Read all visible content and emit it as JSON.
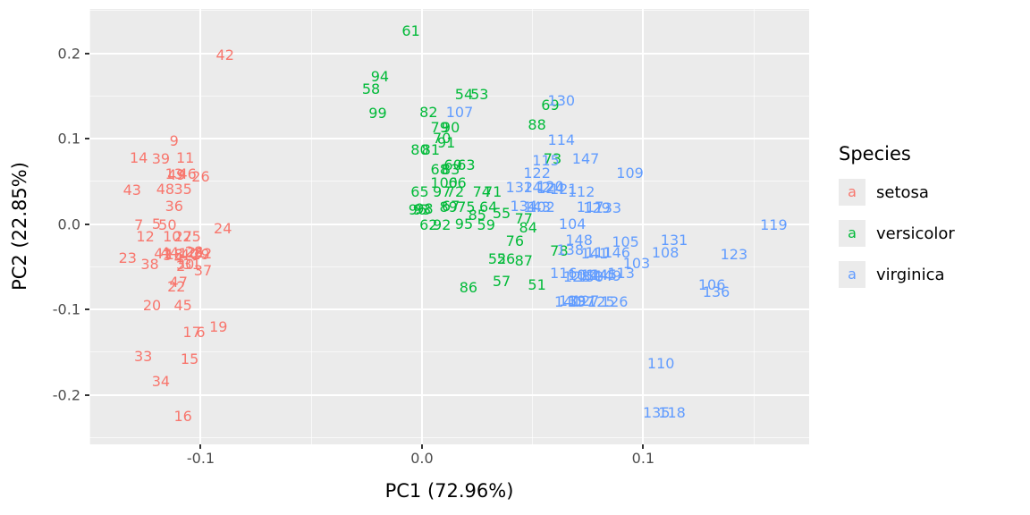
{
  "figure": {
    "xlabel": "PC1 (72.96%)",
    "ylabel": "PC2 (22.85%)"
  },
  "legend": {
    "title": "Species",
    "glyph": "a",
    "items": [
      {
        "label": "setosa",
        "color": "#F8766D"
      },
      {
        "label": "versicolor",
        "color": "#00BA38"
      },
      {
        "label": "virginica",
        "color": "#619CFF"
      }
    ]
  },
  "chart_data": {
    "type": "scatter",
    "mode": "text-labels",
    "title": "",
    "xlabel": "PC1 (72.96%)",
    "ylabel": "PC2 (22.85%)",
    "xlim": [
      -0.1503,
      0.175
    ],
    "ylim": [
      -0.258,
      0.252
    ],
    "x_ticks": [
      -0.1,
      0.0,
      0.1
    ],
    "x_tick_labels": [
      "-0.1",
      "0.0",
      "0.1"
    ],
    "y_ticks": [
      -0.2,
      -0.1,
      0.0,
      0.1,
      0.2
    ],
    "y_tick_labels": [
      "-0.2",
      "-0.1",
      "0.0",
      "0.1",
      "0.2"
    ],
    "x_minor": [
      -0.15,
      -0.05,
      0.05,
      0.15
    ],
    "y_minor": [
      -0.25,
      -0.15,
      -0.05,
      0.05,
      0.15,
      0.25
    ],
    "grid": true,
    "legend_position": "right",
    "panel_background": "#EBEBEB",
    "grid_color": "#FFFFFF",
    "series_colors": {
      "setosa": "#F8766D",
      "versicolor": "#00BA38",
      "virginica": "#619CFF"
    },
    "point_format": [
      "label",
      "species",
      "x",
      "y"
    ],
    "points": [
      [
        "1",
        "setosa",
        -0.108,
        -0.035
      ],
      [
        "2",
        "setosa",
        -0.109,
        -0.05
      ],
      [
        "3",
        "setosa",
        -0.115,
        -0.037
      ],
      [
        "4",
        "setosa",
        -0.11,
        -0.04
      ],
      [
        "5",
        "setosa",
        -0.12,
        0.0
      ],
      [
        "6",
        "setosa",
        -0.1,
        -0.127
      ],
      [
        "7",
        "setosa",
        -0.128,
        -0.001
      ],
      [
        "8",
        "setosa",
        -0.11,
        -0.036
      ],
      [
        "9",
        "setosa",
        -0.112,
        0.097
      ],
      [
        "10",
        "setosa",
        -0.113,
        -0.015
      ],
      [
        "11",
        "setosa",
        -0.107,
        0.077
      ],
      [
        "12",
        "setosa",
        -0.125,
        -0.015
      ],
      [
        "13",
        "setosa",
        -0.112,
        0.058
      ],
      [
        "14",
        "setosa",
        -0.128,
        0.077
      ],
      [
        "15",
        "setosa",
        -0.105,
        -0.158
      ],
      [
        "16",
        "setosa",
        -0.108,
        -0.226
      ],
      [
        "17",
        "setosa",
        -0.104,
        -0.127
      ],
      [
        "18",
        "setosa",
        -0.112,
        -0.036
      ],
      [
        "19",
        "setosa",
        -0.092,
        -0.121
      ],
      [
        "20",
        "setosa",
        -0.122,
        -0.096
      ],
      [
        "21",
        "setosa",
        -0.102,
        -0.034
      ],
      [
        "22",
        "setosa",
        -0.111,
        -0.074
      ],
      [
        "23",
        "setosa",
        -0.133,
        -0.04
      ],
      [
        "24",
        "setosa",
        -0.09,
        -0.006
      ],
      [
        "25",
        "setosa",
        -0.104,
        -0.015
      ],
      [
        "26",
        "setosa",
        -0.1,
        0.055
      ],
      [
        "27",
        "setosa",
        -0.108,
        -0.015
      ],
      [
        "28",
        "setosa",
        -0.103,
        -0.033
      ],
      [
        "29",
        "setosa",
        -0.1,
        -0.036
      ],
      [
        "30",
        "setosa",
        -0.107,
        -0.047
      ],
      [
        "31",
        "setosa",
        -0.104,
        -0.047
      ],
      [
        "32",
        "setosa",
        -0.099,
        -0.035
      ],
      [
        "33",
        "setosa",
        -0.126,
        -0.155
      ],
      [
        "34",
        "setosa",
        -0.118,
        -0.185
      ],
      [
        "35",
        "setosa",
        -0.108,
        0.04
      ],
      [
        "36",
        "setosa",
        -0.112,
        0.021
      ],
      [
        "37",
        "setosa",
        -0.099,
        -0.055
      ],
      [
        "38",
        "setosa",
        -0.123,
        -0.048
      ],
      [
        "39",
        "setosa",
        -0.118,
        0.076
      ],
      [
        "40",
        "setosa",
        -0.105,
        -0.036
      ],
      [
        "41",
        "setosa",
        -0.117,
        -0.035
      ],
      [
        "42",
        "setosa",
        -0.089,
        0.198
      ],
      [
        "43",
        "setosa",
        -0.131,
        0.039
      ],
      [
        "44",
        "setosa",
        -0.114,
        -0.034
      ],
      [
        "45",
        "setosa",
        -0.108,
        -0.096
      ],
      [
        "46",
        "setosa",
        -0.106,
        0.058
      ],
      [
        "47",
        "setosa",
        -0.11,
        -0.068
      ],
      [
        "48",
        "setosa",
        -0.116,
        0.04
      ],
      [
        "49",
        "setosa",
        -0.111,
        0.057
      ],
      [
        "50",
        "setosa",
        -0.115,
        -0.001
      ],
      [
        "51",
        "versicolor",
        0.052,
        -0.072
      ],
      [
        "52",
        "versicolor",
        0.034,
        -0.041
      ],
      [
        "53",
        "versicolor",
        0.026,
        0.151
      ],
      [
        "54",
        "versicolor",
        0.019,
        0.151
      ],
      [
        "55",
        "versicolor",
        0.036,
        0.012
      ],
      [
        "56",
        "versicolor",
        0.038,
        -0.041
      ],
      [
        "57",
        "versicolor",
        0.036,
        -0.067
      ],
      [
        "58",
        "versicolor",
        -0.023,
        0.158
      ],
      [
        "59",
        "versicolor",
        0.029,
        -0.001
      ],
      [
        "60",
        "versicolor",
        0.014,
        0.069
      ],
      [
        "61",
        "versicolor",
        -0.005,
        0.226
      ],
      [
        "62",
        "versicolor",
        0.003,
        -0.001
      ],
      [
        "63",
        "versicolor",
        0.02,
        0.069
      ],
      [
        "64",
        "versicolor",
        0.03,
        0.02
      ],
      [
        "65",
        "versicolor",
        -0.001,
        0.037
      ],
      [
        "66",
        "versicolor",
        0.016,
        0.048
      ],
      [
        "67",
        "versicolor",
        0.013,
        0.021
      ],
      [
        "68",
        "versicolor",
        0.008,
        0.064
      ],
      [
        "69",
        "versicolor",
        0.058,
        0.139
      ],
      [
        "70",
        "versicolor",
        0.009,
        0.1
      ],
      [
        "71",
        "versicolor",
        0.032,
        0.037
      ],
      [
        "72",
        "versicolor",
        0.015,
        0.037
      ],
      [
        "73",
        "versicolor",
        0.059,
        0.076
      ],
      [
        "74",
        "versicolor",
        0.027,
        0.037
      ],
      [
        "75",
        "versicolor",
        0.02,
        0.019
      ],
      [
        "76",
        "versicolor",
        0.042,
        -0.02
      ],
      [
        "77",
        "versicolor",
        0.046,
        0.006
      ],
      [
        "78",
        "versicolor",
        0.062,
        -0.032
      ],
      [
        "79",
        "versicolor",
        0.008,
        0.113
      ],
      [
        "80",
        "versicolor",
        -0.001,
        0.087
      ],
      [
        "81",
        "versicolor",
        0.004,
        0.087
      ],
      [
        "82",
        "versicolor",
        0.003,
        0.131
      ],
      [
        "83",
        "versicolor",
        0.013,
        0.063
      ],
      [
        "84",
        "versicolor",
        0.048,
        -0.005
      ],
      [
        "85",
        "versicolor",
        0.025,
        0.01
      ],
      [
        "86",
        "versicolor",
        0.021,
        -0.075
      ],
      [
        "87",
        "versicolor",
        0.046,
        -0.043
      ],
      [
        "88",
        "versicolor",
        0.052,
        0.116
      ],
      [
        "89",
        "versicolor",
        0.012,
        0.019
      ],
      [
        "90",
        "versicolor",
        0.013,
        0.113
      ],
      [
        "91",
        "versicolor",
        0.011,
        0.095
      ],
      [
        "92",
        "versicolor",
        0.009,
        -0.001
      ],
      [
        "93",
        "versicolor",
        0.0,
        0.016
      ],
      [
        "94",
        "versicolor",
        -0.019,
        0.172
      ],
      [
        "95",
        "versicolor",
        0.019,
        0.0
      ],
      [
        "96",
        "versicolor",
        -0.002,
        0.016
      ],
      [
        "97",
        "versicolor",
        0.009,
        0.037
      ],
      [
        "98",
        "versicolor",
        0.001,
        0.017
      ],
      [
        "99",
        "versicolor",
        -0.02,
        0.129
      ],
      [
        "100",
        "versicolor",
        0.01,
        0.048
      ],
      [
        "101",
        "virginica",
        0.072,
        -0.06
      ],
      [
        "102",
        "virginica",
        0.054,
        0.02
      ],
      [
        "103",
        "virginica",
        0.097,
        -0.046
      ],
      [
        "104",
        "virginica",
        0.068,
        0.0
      ],
      [
        "105",
        "virginica",
        0.092,
        -0.021
      ],
      [
        "106",
        "virginica",
        0.131,
        -0.072
      ],
      [
        "107",
        "virginica",
        0.017,
        0.131
      ],
      [
        "108",
        "virginica",
        0.11,
        -0.034
      ],
      [
        "109",
        "virginica",
        0.094,
        0.059
      ],
      [
        "110",
        "virginica",
        0.108,
        -0.164
      ],
      [
        "111",
        "virginica",
        0.08,
        -0.034
      ],
      [
        "112",
        "virginica",
        0.072,
        0.037
      ],
      [
        "113",
        "virginica",
        0.09,
        -0.058
      ],
      [
        "114",
        "virginica",
        0.063,
        0.098
      ],
      [
        "115",
        "virginica",
        0.056,
        0.074
      ],
      [
        "116",
        "virginica",
        0.064,
        -0.058
      ],
      [
        "117",
        "virginica",
        0.076,
        0.019
      ],
      [
        "118",
        "virginica",
        0.113,
        -0.221
      ],
      [
        "119",
        "virginica",
        0.159,
        -0.001
      ],
      [
        "120",
        "virginica",
        0.058,
        0.044
      ],
      [
        "121",
        "virginica",
        0.064,
        0.04
      ],
      [
        "122",
        "virginica",
        0.052,
        0.059
      ],
      [
        "123",
        "virginica",
        0.141,
        -0.036
      ],
      [
        "124",
        "virginica",
        0.058,
        0.041
      ],
      [
        "125",
        "virginica",
        0.081,
        -0.092
      ],
      [
        "126",
        "virginica",
        0.087,
        -0.092
      ],
      [
        "127",
        "virginica",
        0.074,
        -0.09
      ],
      [
        "128",
        "virginica",
        0.07,
        -0.062
      ],
      [
        "129",
        "virginica",
        0.079,
        0.018
      ],
      [
        "130",
        "virginica",
        0.063,
        0.144
      ],
      [
        "131",
        "virginica",
        0.114,
        -0.019
      ],
      [
        "132",
        "virginica",
        0.044,
        0.043
      ],
      [
        "133",
        "virginica",
        0.084,
        0.018
      ],
      [
        "134",
        "virginica",
        0.046,
        0.021
      ],
      [
        "135",
        "virginica",
        0.106,
        -0.221
      ],
      [
        "136",
        "virginica",
        0.133,
        -0.08
      ],
      [
        "137",
        "virginica",
        0.072,
        -0.091
      ],
      [
        "138",
        "virginica",
        0.067,
        -0.031
      ],
      [
        "139",
        "virginica",
        0.068,
        -0.09
      ],
      [
        "140",
        "virginica",
        0.066,
        -0.091
      ],
      [
        "141",
        "virginica",
        0.078,
        -0.035
      ],
      [
        "142",
        "virginica",
        0.052,
        0.043
      ],
      [
        "143",
        "virginica",
        0.052,
        0.02
      ],
      [
        "144",
        "virginica",
        0.078,
        -0.06
      ],
      [
        "145",
        "virginica",
        0.082,
        -0.06
      ],
      [
        "146",
        "virginica",
        0.088,
        -0.034
      ],
      [
        "147",
        "virginica",
        0.074,
        0.076
      ],
      [
        "148",
        "virginica",
        0.071,
        -0.019
      ],
      [
        "149",
        "virginica",
        0.084,
        -0.061
      ],
      [
        "150",
        "virginica",
        0.076,
        -0.062
      ]
    ]
  }
}
